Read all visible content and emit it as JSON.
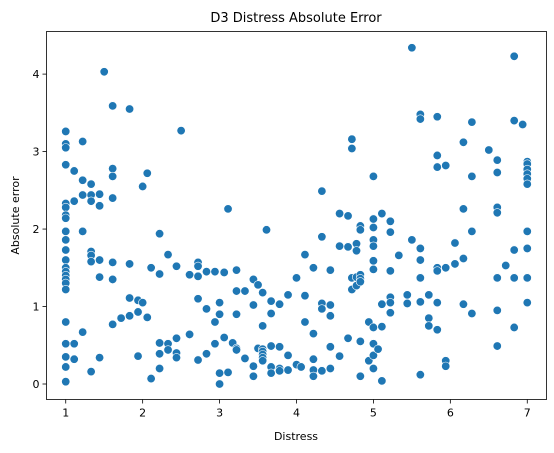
{
  "chart_data": {
    "type": "scatter",
    "title": "D3 Distress Absolute Error",
    "xlabel": "Distress",
    "ylabel": "Absolute error",
    "xlim": [
      0.75,
      7.25
    ],
    "ylim": [
      -0.2,
      4.55
    ],
    "xticks": [
      1,
      2,
      3,
      4,
      5,
      6,
      7
    ],
    "yticks": [
      0,
      1,
      2,
      3,
      4
    ],
    "grid": false,
    "color": "#1f77b4",
    "points": [
      [
        1.0,
        3.26
      ],
      [
        1.0,
        3.1
      ],
      [
        1.0,
        3.05
      ],
      [
        1.0,
        2.83
      ],
      [
        1.0,
        2.33
      ],
      [
        1.0,
        2.28
      ],
      [
        1.0,
        2.18
      ],
      [
        1.0,
        2.14
      ],
      [
        1.0,
        1.97
      ],
      [
        1.0,
        1.86
      ],
      [
        1.0,
        1.73
      ],
      [
        1.0,
        1.6
      ],
      [
        1.0,
        1.5
      ],
      [
        1.0,
        1.45
      ],
      [
        1.0,
        1.4
      ],
      [
        1.0,
        1.35
      ],
      [
        1.0,
        1.3
      ],
      [
        1.0,
        1.22
      ],
      [
        1.0,
        0.8
      ],
      [
        1.0,
        0.52
      ],
      [
        1.0,
        0.35
      ],
      [
        1.0,
        0.22
      ],
      [
        1.0,
        0.03
      ],
      [
        1.11,
        2.75
      ],
      [
        1.11,
        2.36
      ],
      [
        1.11,
        0.52
      ],
      [
        1.11,
        0.32
      ],
      [
        1.22,
        3.13
      ],
      [
        1.22,
        2.63
      ],
      [
        1.22,
        2.44
      ],
      [
        1.22,
        1.97
      ],
      [
        1.22,
        0.67
      ],
      [
        1.33,
        2.58
      ],
      [
        1.33,
        2.44
      ],
      [
        1.33,
        2.36
      ],
      [
        1.33,
        1.71
      ],
      [
        1.33,
        1.66
      ],
      [
        1.33,
        1.58
      ],
      [
        1.33,
        0.16
      ],
      [
        1.44,
        2.45
      ],
      [
        1.44,
        2.3
      ],
      [
        1.44,
        1.6
      ],
      [
        1.44,
        1.38
      ],
      [
        1.44,
        0.34
      ],
      [
        1.5,
        4.03
      ],
      [
        1.61,
        3.59
      ],
      [
        1.61,
        2.78
      ],
      [
        1.61,
        2.68
      ],
      [
        1.61,
        2.4
      ],
      [
        1.61,
        1.57
      ],
      [
        1.61,
        1.35
      ],
      [
        1.61,
        0.77
      ],
      [
        1.72,
        0.85
      ],
      [
        1.83,
        3.55
      ],
      [
        1.83,
        1.55
      ],
      [
        1.83,
        1.11
      ],
      [
        1.83,
        0.88
      ],
      [
        1.94,
        1.08
      ],
      [
        1.94,
        0.93
      ],
      [
        1.94,
        0.36
      ],
      [
        2.0,
        2.55
      ],
      [
        2.0,
        1.05
      ],
      [
        2.06,
        2.72
      ],
      [
        2.06,
        0.86
      ],
      [
        2.11,
        1.5
      ],
      [
        2.11,
        0.07
      ],
      [
        2.22,
        1.94
      ],
      [
        2.22,
        1.42
      ],
      [
        2.22,
        0.53
      ],
      [
        2.22,
        0.39
      ],
      [
        2.22,
        0.2
      ],
      [
        2.33,
        1.67
      ],
      [
        2.33,
        0.52
      ],
      [
        2.33,
        0.44
      ],
      [
        2.44,
        1.52
      ],
      [
        2.44,
        0.59
      ],
      [
        2.44,
        0.4
      ],
      [
        2.44,
        0.34
      ],
      [
        2.5,
        3.27
      ],
      [
        2.61,
        1.41
      ],
      [
        2.61,
        0.64
      ],
      [
        2.72,
        1.57
      ],
      [
        2.72,
        1.52
      ],
      [
        2.72,
        1.39
      ],
      [
        2.72,
        1.1
      ],
      [
        2.72,
        0.31
      ],
      [
        2.83,
        1.45
      ],
      [
        2.83,
        0.97
      ],
      [
        2.83,
        0.39
      ],
      [
        2.94,
        1.45
      ],
      [
        2.94,
        0.8
      ],
      [
        2.94,
        0.52
      ],
      [
        3.0,
        1.05
      ],
      [
        3.0,
        0.9
      ],
      [
        3.0,
        0.14
      ],
      [
        3.0,
        0.0
      ],
      [
        3.06,
        1.44
      ],
      [
        3.06,
        0.6
      ],
      [
        3.11,
        2.26
      ],
      [
        3.11,
        0.15
      ],
      [
        3.17,
        0.53
      ],
      [
        3.22,
        1.47
      ],
      [
        3.22,
        1.2
      ],
      [
        3.22,
        0.9
      ],
      [
        3.22,
        0.46
      ],
      [
        3.22,
        0.44
      ],
      [
        3.33,
        1.2
      ],
      [
        3.33,
        0.33
      ],
      [
        3.44,
        1.35
      ],
      [
        3.44,
        1.02
      ],
      [
        3.44,
        0.23
      ],
      [
        3.44,
        0.1
      ],
      [
        3.5,
        1.28
      ],
      [
        3.5,
        0.46
      ],
      [
        3.56,
        1.18
      ],
      [
        3.56,
        0.75
      ],
      [
        3.56,
        0.45
      ],
      [
        3.56,
        0.42
      ],
      [
        3.56,
        0.38
      ],
      [
        3.56,
        0.34
      ],
      [
        3.56,
        0.3
      ],
      [
        3.61,
        1.99
      ],
      [
        3.67,
        1.07
      ],
      [
        3.67,
        0.91
      ],
      [
        3.67,
        0.49
      ],
      [
        3.67,
        0.22
      ],
      [
        3.67,
        0.14
      ],
      [
        3.78,
        1.03
      ],
      [
        3.78,
        0.48
      ],
      [
        3.78,
        0.2
      ],
      [
        3.78,
        0.17
      ],
      [
        3.89,
        1.15
      ],
      [
        3.89,
        0.37
      ],
      [
        3.89,
        0.18
      ],
      [
        4.0,
        1.37
      ],
      [
        4.0,
        0.25
      ],
      [
        4.06,
        0.22
      ],
      [
        4.11,
        1.67
      ],
      [
        4.11,
        1.14
      ],
      [
        4.11,
        0.8
      ],
      [
        4.22,
        1.5
      ],
      [
        4.22,
        0.65
      ],
      [
        4.22,
        0.32
      ],
      [
        4.22,
        0.18
      ],
      [
        4.22,
        0.1
      ],
      [
        4.33,
        2.49
      ],
      [
        4.33,
        1.9
      ],
      [
        4.33,
        1.04
      ],
      [
        4.33,
        0.97
      ],
      [
        4.33,
        0.17
      ],
      [
        4.44,
        1.47
      ],
      [
        4.44,
        1.02
      ],
      [
        4.44,
        0.88
      ],
      [
        4.44,
        0.48
      ],
      [
        4.44,
        0.2
      ],
      [
        4.56,
        2.2
      ],
      [
        4.56,
        1.78
      ],
      [
        4.56,
        0.36
      ],
      [
        4.67,
        2.17
      ],
      [
        4.67,
        1.77
      ],
      [
        4.67,
        0.59
      ],
      [
        4.72,
        3.16
      ],
      [
        4.72,
        3.04
      ],
      [
        4.72,
        1.37
      ],
      [
        4.72,
        1.22
      ],
      [
        4.78,
        1.81
      ],
      [
        4.78,
        1.72
      ],
      [
        4.78,
        1.38
      ],
      [
        4.78,
        1.27
      ],
      [
        4.83,
        2.04
      ],
      [
        4.83,
        1.99
      ],
      [
        4.83,
        1.41
      ],
      [
        4.83,
        1.36
      ],
      [
        4.83,
        1.32
      ],
      [
        4.83,
        0.55
      ],
      [
        4.83,
        0.1
      ],
      [
        4.94,
        0.8
      ],
      [
        4.94,
        0.3
      ],
      [
        5.0,
        2.68
      ],
      [
        5.0,
        2.13
      ],
      [
        5.0,
        2.02
      ],
      [
        5.0,
        1.86
      ],
      [
        5.0,
        1.78
      ],
      [
        5.0,
        1.59
      ],
      [
        5.0,
        1.48
      ],
      [
        5.0,
        0.73
      ],
      [
        5.0,
        0.52
      ],
      [
        5.0,
        0.37
      ],
      [
        5.0,
        0.2
      ],
      [
        5.06,
        0.45
      ],
      [
        5.11,
        2.2
      ],
      [
        5.11,
        1.03
      ],
      [
        5.11,
        0.74
      ],
      [
        5.11,
        0.04
      ],
      [
        5.22,
        2.1
      ],
      [
        5.22,
        1.96
      ],
      [
        5.22,
        1.46
      ],
      [
        5.22,
        1.12
      ],
      [
        5.22,
        1.05
      ],
      [
        5.22,
        0.92
      ],
      [
        5.33,
        1.66
      ],
      [
        5.44,
        1.15
      ],
      [
        5.44,
        1.04
      ],
      [
        5.5,
        4.34
      ],
      [
        5.5,
        1.86
      ],
      [
        5.61,
        3.48
      ],
      [
        5.61,
        3.42
      ],
      [
        5.61,
        1.75
      ],
      [
        5.61,
        1.6
      ],
      [
        5.61,
        1.37
      ],
      [
        5.61,
        1.06
      ],
      [
        5.61,
        0.12
      ],
      [
        5.72,
        1.15
      ],
      [
        5.72,
        0.85
      ],
      [
        5.72,
        0.75
      ],
      [
        5.83,
        3.45
      ],
      [
        5.83,
        2.95
      ],
      [
        5.83,
        2.8
      ],
      [
        5.83,
        1.5
      ],
      [
        5.83,
        1.46
      ],
      [
        5.83,
        1.05
      ],
      [
        5.83,
        0.7
      ],
      [
        5.94,
        2.82
      ],
      [
        5.94,
        1.5
      ],
      [
        5.94,
        0.3
      ],
      [
        5.94,
        0.23
      ],
      [
        6.06,
        1.82
      ],
      [
        6.06,
        1.55
      ],
      [
        6.17,
        3.12
      ],
      [
        6.17,
        2.26
      ],
      [
        6.17,
        1.62
      ],
      [
        6.17,
        1.03
      ],
      [
        6.28,
        3.38
      ],
      [
        6.28,
        2.68
      ],
      [
        6.28,
        1.97
      ],
      [
        6.28,
        0.91
      ],
      [
        6.5,
        3.02
      ],
      [
        6.61,
        2.89
      ],
      [
        6.61,
        2.73
      ],
      [
        6.61,
        2.28
      ],
      [
        6.61,
        2.21
      ],
      [
        6.61,
        1.37
      ],
      [
        6.61,
        0.95
      ],
      [
        6.61,
        0.49
      ],
      [
        6.72,
        1.53
      ],
      [
        6.83,
        4.23
      ],
      [
        6.83,
        3.4
      ],
      [
        6.83,
        1.73
      ],
      [
        6.83,
        1.37
      ],
      [
        6.83,
        0.73
      ],
      [
        6.94,
        3.35
      ],
      [
        7.0,
        2.87
      ],
      [
        7.0,
        2.84
      ],
      [
        7.0,
        2.77
      ],
      [
        7.0,
        2.71
      ],
      [
        7.0,
        2.65
      ],
      [
        7.0,
        2.58
      ],
      [
        7.0,
        1.97
      ],
      [
        7.0,
        1.75
      ],
      [
        7.0,
        1.37
      ],
      [
        7.0,
        1.05
      ]
    ]
  }
}
